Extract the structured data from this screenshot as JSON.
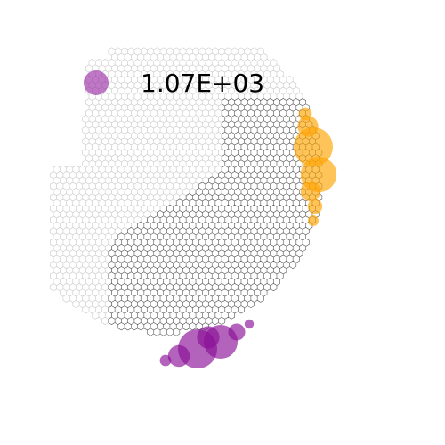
{
  "chart_data": {
    "type": "scatter",
    "title": "",
    "xlabel": "",
    "ylabel": "",
    "grid": false,
    "legend": {
      "placement": "top-left",
      "entries": [
        {
          "label": "1.07E+03",
          "color": "#9b30a8"
        }
      ]
    },
    "series": [
      {
        "color": "#ffa500",
        "points": [
          {
            "x": 352,
            "y": 165,
            "value": 1070
          },
          {
            "x": 358,
            "y": 196,
            "value": 900
          },
          {
            "x": 346,
            "y": 142,
            "value": 300
          },
          {
            "x": 349,
            "y": 215,
            "value": 280
          },
          {
            "x": 354,
            "y": 232,
            "value": 150
          },
          {
            "x": 343,
            "y": 128,
            "value": 120
          },
          {
            "x": 352,
            "y": 248,
            "value": 80
          }
        ]
      },
      {
        "color": "#8b0f96",
        "points": [
          {
            "x": 222,
            "y": 392,
            "value": 1070
          },
          {
            "x": 248,
            "y": 384,
            "value": 800
          },
          {
            "x": 201,
            "y": 400,
            "value": 330
          },
          {
            "x": 266,
            "y": 373,
            "value": 200
          },
          {
            "x": 186,
            "y": 405,
            "value": 90
          },
          {
            "x": 280,
            "y": 364,
            "value": 60
          },
          {
            "x": 234,
            "y": 379,
            "value": 350
          }
        ]
      }
    ]
  }
}
